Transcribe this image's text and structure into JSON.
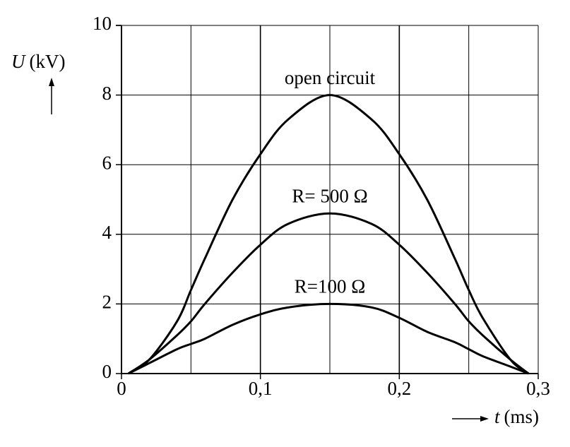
{
  "chart_data": {
    "type": "line",
    "ylabel_symbol": "U",
    "ylabel_unit": "(kV)",
    "xlabel_symbol": "t",
    "xlabel_unit": "(ms)",
    "x": [
      0.005,
      0.02,
      0.04,
      0.05,
      0.06,
      0.08,
      0.1,
      0.12,
      0.15,
      0.18,
      0.2,
      0.22,
      0.24,
      0.25,
      0.26,
      0.28,
      0.293
    ],
    "series": [
      {
        "name": "open circuit",
        "color": "#000000",
        "values": [
          0,
          0.4,
          1.5,
          2.4,
          3.3,
          5.0,
          6.3,
          7.3,
          8.0,
          7.3,
          6.3,
          5.0,
          3.3,
          2.4,
          1.6,
          0.4,
          0
        ]
      },
      {
        "name": "R= 500 Ω",
        "color": "#000000",
        "values": [
          0,
          0.4,
          1.1,
          1.5,
          2.0,
          2.9,
          3.7,
          4.3,
          4.6,
          4.3,
          3.7,
          2.9,
          2.0,
          1.5,
          1.1,
          0.4,
          0
        ]
      },
      {
        "name": "R=100 Ω",
        "color": "#000000",
        "values": [
          0,
          0.3,
          0.7,
          0.85,
          1.0,
          1.4,
          1.7,
          1.9,
          2.0,
          1.9,
          1.6,
          1.2,
          0.9,
          0.7,
          0.5,
          0.2,
          0
        ]
      }
    ],
    "xlim": [
      0,
      0.3
    ],
    "ylim": [
      0,
      10
    ],
    "xticks": [
      0,
      {
        "value": 0.1,
        "label": "0,1"
      },
      {
        "value": 0.2,
        "label": "0,2"
      },
      {
        "value": 0.3,
        "label": "0,3"
      }
    ],
    "x_minor_grid": [
      0.05,
      0.15,
      0.25
    ],
    "yticks": [
      0,
      2,
      4,
      6,
      8,
      10
    ],
    "grid": true
  }
}
